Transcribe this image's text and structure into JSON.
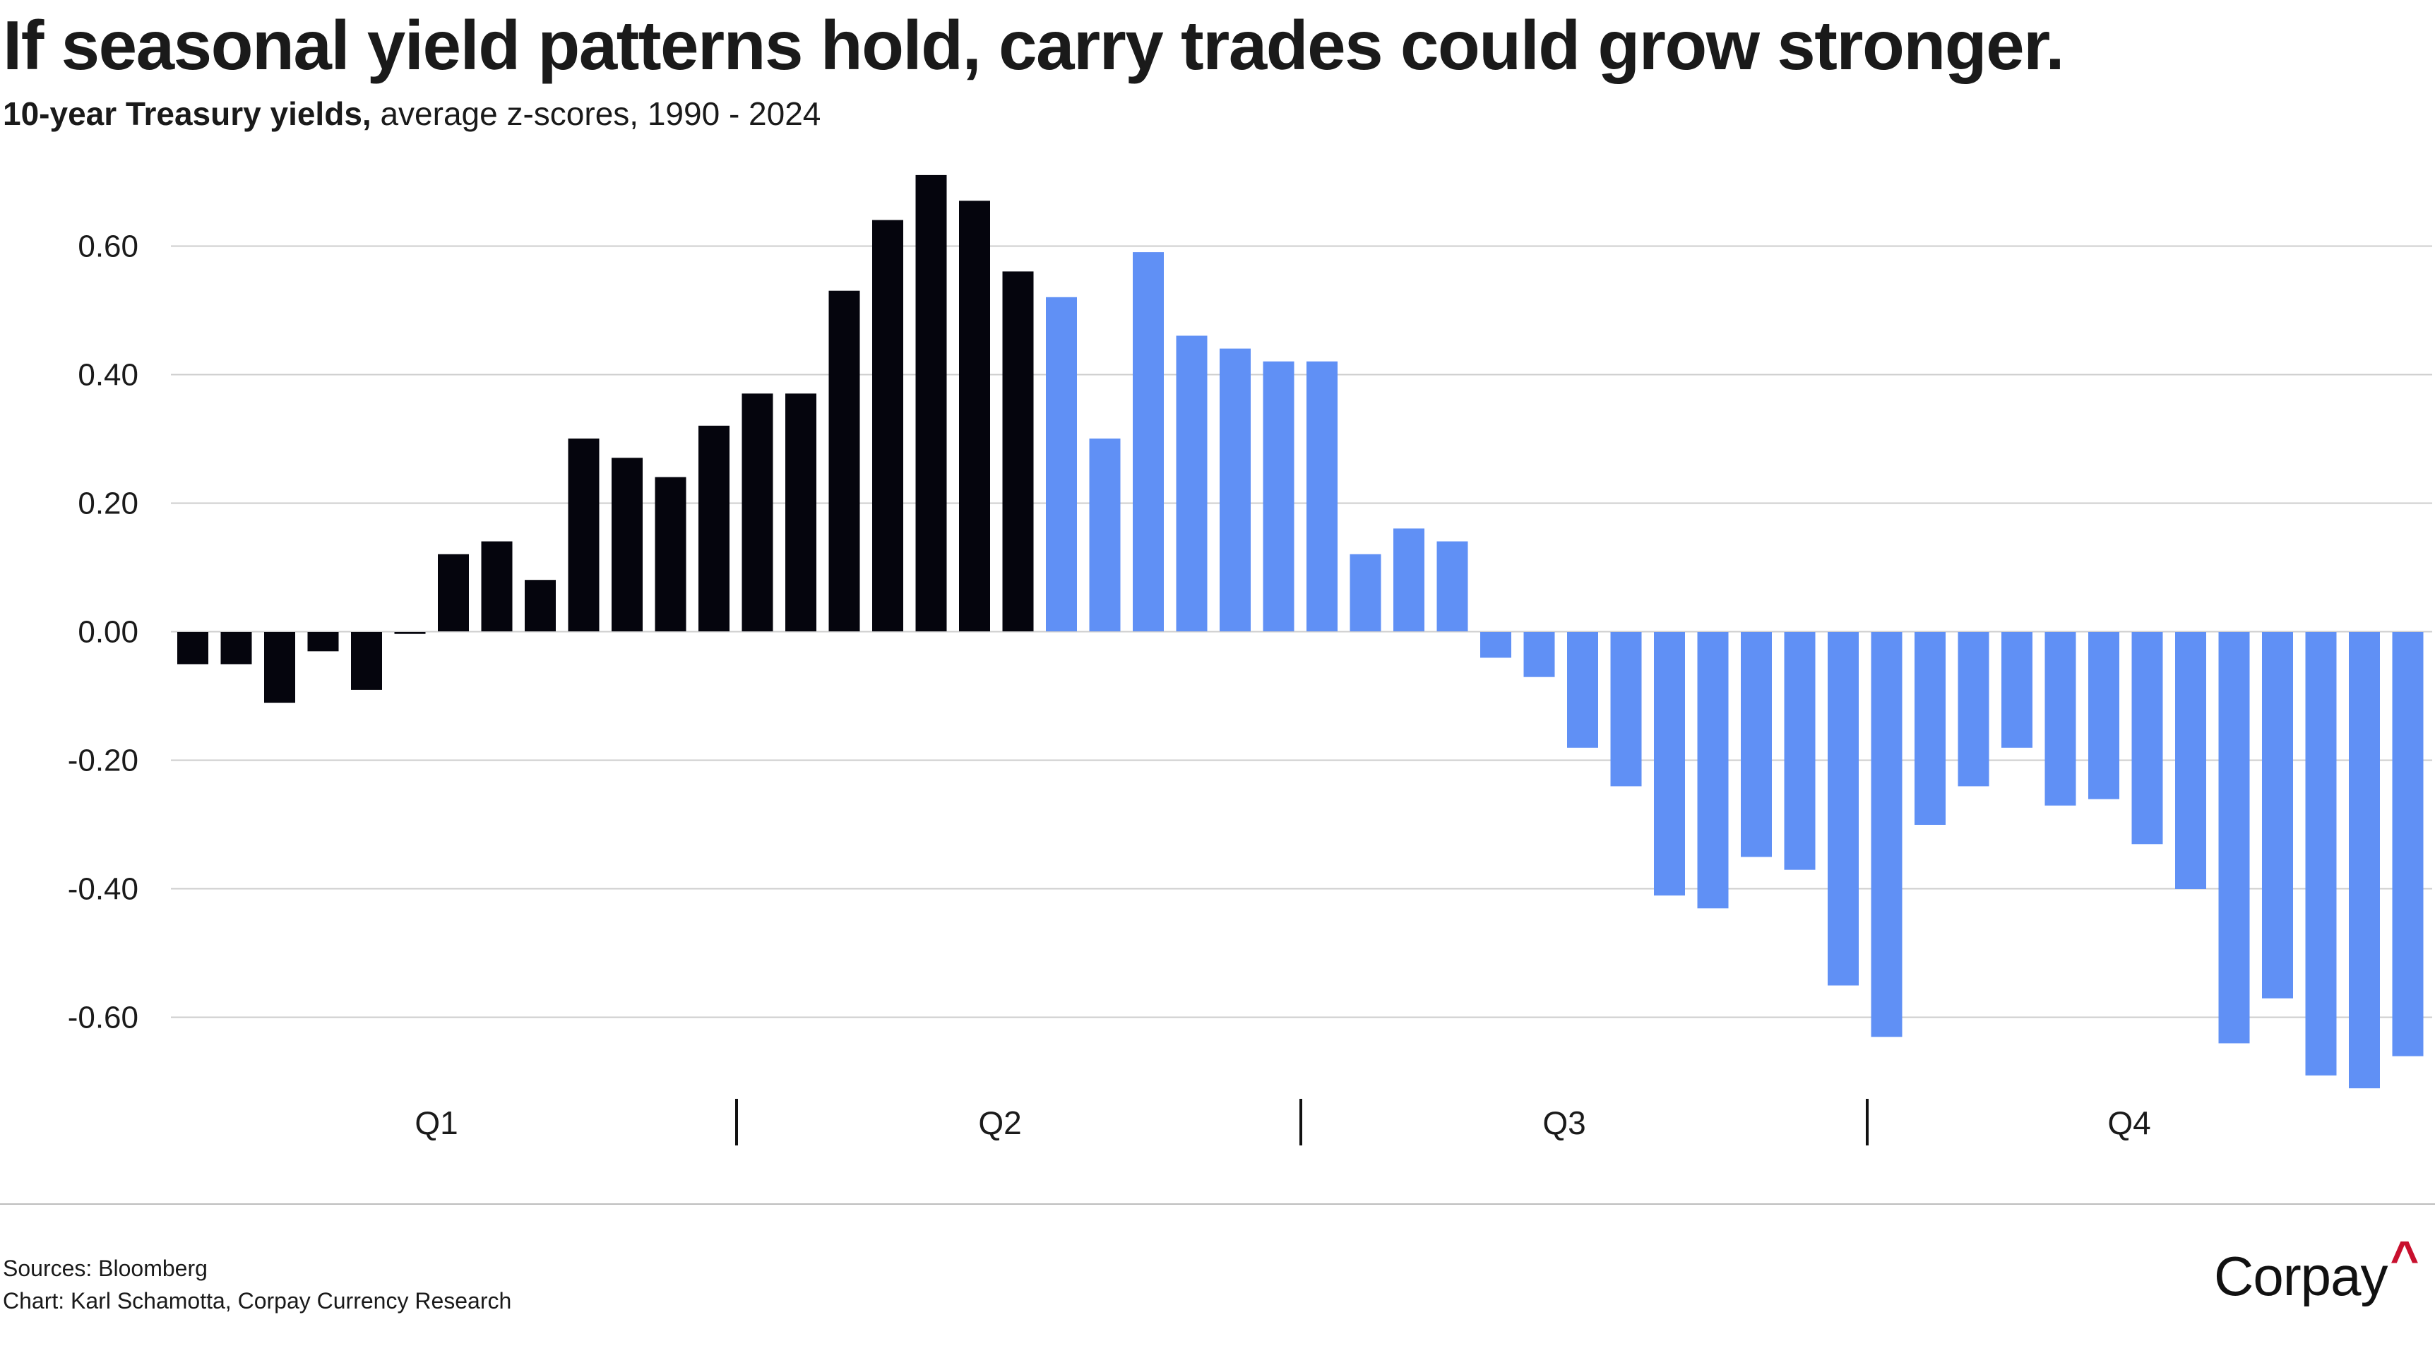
{
  "header": {
    "title": "If seasonal yield patterns hold, carry trades could grow stronger.",
    "subtitle_bold": "10-year Treasury yields,",
    "subtitle_rest": " average z-scores, 1990 - 2024"
  },
  "footer": {
    "sources": "Sources: Bloomberg",
    "credit": "Chart: Karl Schamotta, Corpay Currency Research"
  },
  "logo": {
    "text": "Corpay",
    "mark": "^",
    "mark_color": "#c8102e"
  },
  "colors": {
    "first_half": "#05050d",
    "second_half": "#6090f5",
    "gridline": "#cccccc"
  },
  "chart_data": {
    "type": "bar",
    "title": "If seasonal yield patterns hold, carry trades could grow stronger.",
    "subtitle": "10-year Treasury yields, average z-scores, 1990 - 2024",
    "xlabel": "",
    "ylabel": "",
    "x_unit": "week of year",
    "ylim": [
      -0.72,
      0.74
    ],
    "yticks": [
      0.6,
      0.4,
      0.2,
      0.0,
      -0.2,
      -0.4,
      -0.6
    ],
    "ytick_labels": [
      "0.60",
      "0.40",
      "0.20",
      "0.00",
      "-0.20",
      "-0.40",
      "-0.60"
    ],
    "grid": true,
    "legend": "none",
    "quarters": [
      "Q1",
      "Q2",
      "Q3",
      "Q4"
    ],
    "weeks_per_quarter": 13,
    "highlight_split": 20,
    "series": [
      {
        "name": "Average z-score",
        "values": [
          -0.05,
          -0.05,
          -0.11,
          -0.03,
          -0.09,
          -0.003,
          0.12,
          0.14,
          0.08,
          0.3,
          0.27,
          0.24,
          0.32,
          0.37,
          0.37,
          0.53,
          0.64,
          0.71,
          0.67,
          0.56,
          0.52,
          0.3,
          0.59,
          0.46,
          0.44,
          0.42,
          0.42,
          0.12,
          0.16,
          0.14,
          -0.04,
          -0.07,
          -0.18,
          -0.24,
          -0.41,
          -0.43,
          -0.35,
          -0.37,
          -0.55,
          -0.63,
          -0.3,
          -0.24,
          -0.18,
          -0.27,
          -0.26,
          -0.33,
          -0.4,
          -0.64,
          -0.57,
          -0.69,
          -0.71,
          -0.66
        ]
      }
    ]
  }
}
